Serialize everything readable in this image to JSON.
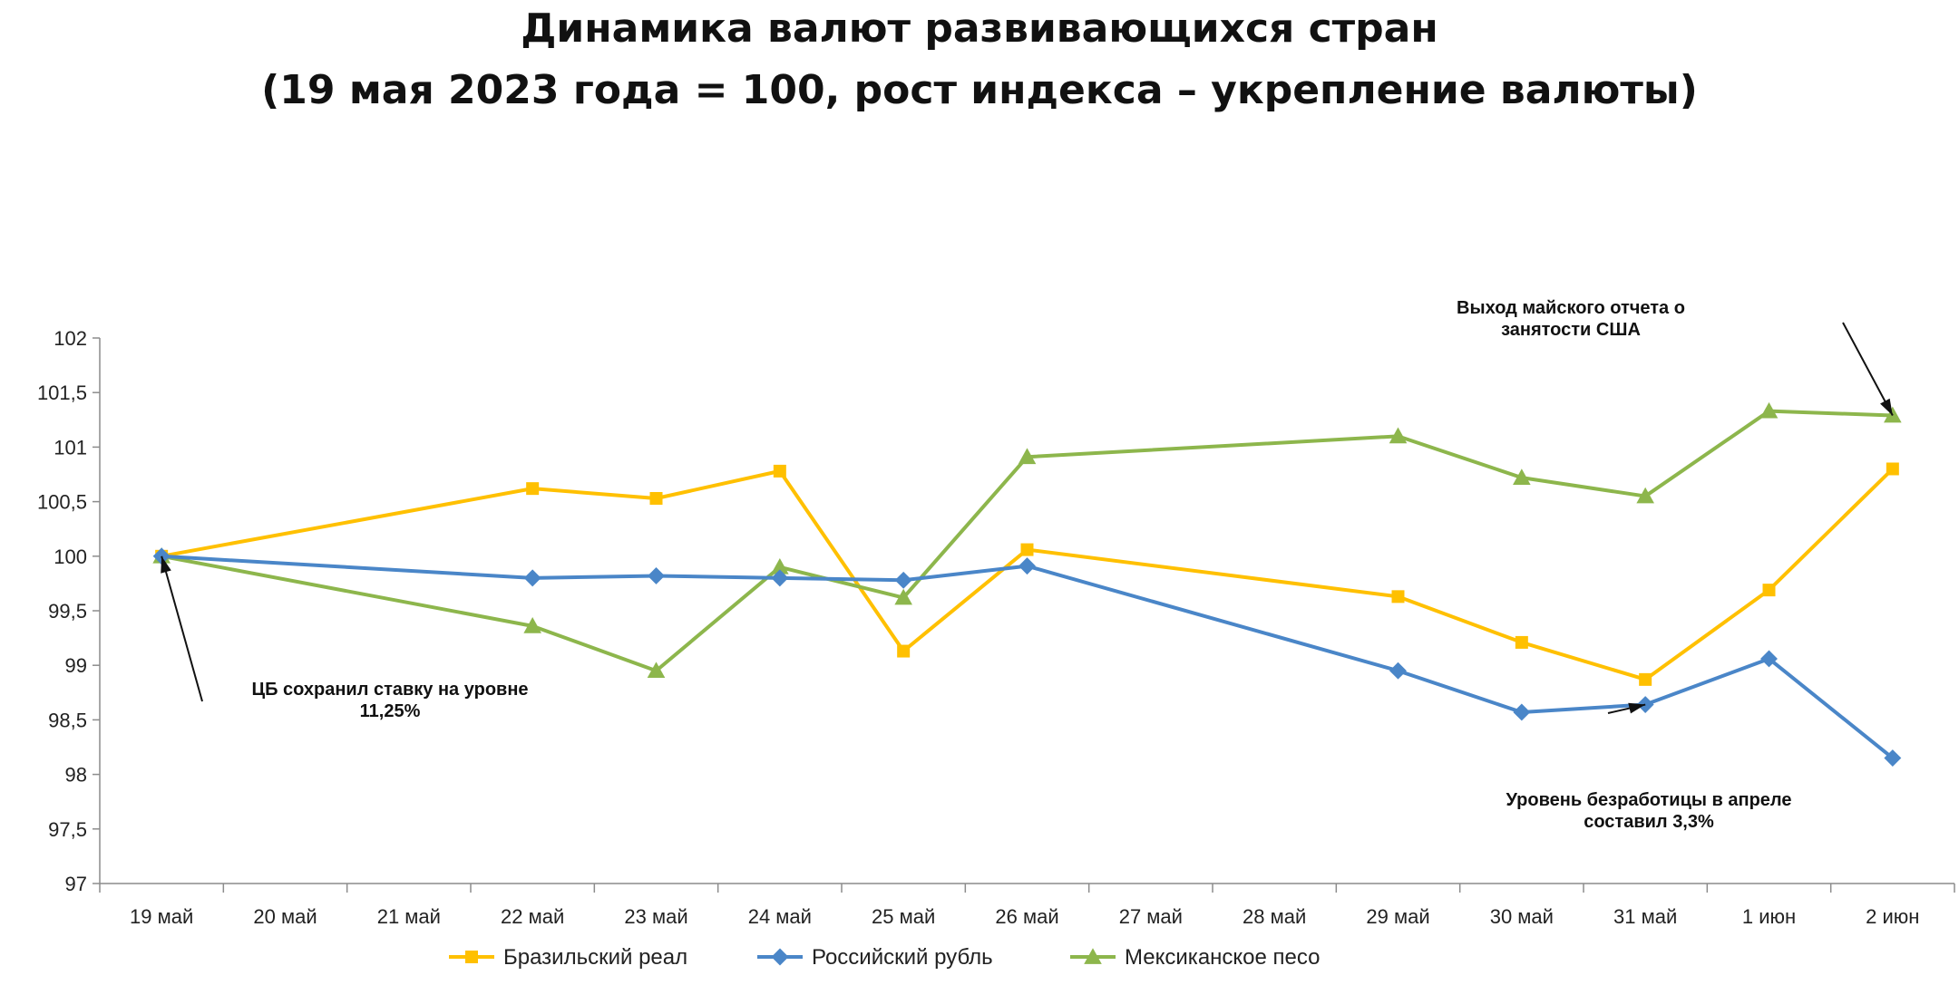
{
  "chart_data": {
    "type": "line",
    "title": "Динамика валют развивающихся стран",
    "subtitle": "(19 мая 2023 года = 100, рост индекса – укрепление валюты)",
    "xlabel": "",
    "ylabel": "",
    "categories": [
      "19 май",
      "20 май",
      "21 май",
      "22 май",
      "23 май",
      "24 май",
      "25 май",
      "26 май",
      "27 май",
      "28 май",
      "29 май",
      "30 май",
      "31 май",
      "1 июн",
      "2 июн"
    ],
    "ylim": [
      97,
      102
    ],
    "yticks": [
      97,
      97.5,
      98,
      98.5,
      99,
      99.5,
      100,
      100.5,
      101,
      101.5,
      102
    ],
    "ytick_labels": [
      "97",
      "97,5",
      "98",
      "98,5",
      "99",
      "99,5",
      "100",
      "100,5",
      "101",
      "101,5",
      "102"
    ],
    "grid": false,
    "legend_position": "bottom",
    "series": [
      {
        "name": "Бразильский реал",
        "color": "#FFC000",
        "marker": "square",
        "values": [
          100.0,
          null,
          null,
          100.62,
          100.53,
          100.78,
          99.13,
          100.06,
          null,
          null,
          99.63,
          99.21,
          98.87,
          99.69,
          100.8
        ]
      },
      {
        "name": "Российский рубль",
        "color": "#4A86C8",
        "marker": "diamond",
        "values": [
          100.0,
          null,
          null,
          99.8,
          99.82,
          99.8,
          99.78,
          99.91,
          null,
          null,
          98.95,
          98.57,
          98.64,
          99.06,
          98.15
        ]
      },
      {
        "name": "Мексиканское песо",
        "color": "#8DB64C",
        "marker": "triangle",
        "values": [
          100.0,
          null,
          null,
          99.36,
          98.95,
          99.9,
          99.62,
          100.91,
          null,
          null,
          101.1,
          100.72,
          100.55,
          101.33,
          101.29
        ]
      }
    ],
    "annotations": [
      {
        "lines": [
          "Выход майского отчета о",
          "занятости США"
        ],
        "series": 2,
        "index": 14
      },
      {
        "lines": [
          "ЦБ сохранил ставку на уровне",
          "11,25%"
        ],
        "series": 1,
        "index": 0
      },
      {
        "lines": [
          "Уровень безработицы в апреле",
          "составил 3,3%"
        ],
        "series": 1,
        "index": 12
      }
    ]
  }
}
